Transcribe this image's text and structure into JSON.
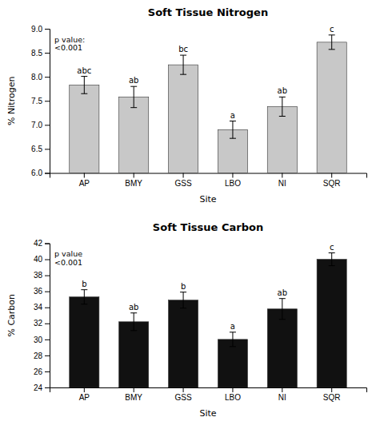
{
  "chart_data": [
    {
      "type": "bar",
      "title": "Soft Tissue Nitrogen",
      "xlabel": "Site",
      "ylabel": "% Nitrogen",
      "categories": [
        "AP",
        "BMY",
        "GSS",
        "LBO",
        "NI",
        "SQR"
      ],
      "values": [
        7.83,
        7.58,
        8.25,
        6.9,
        7.38,
        8.72
      ],
      "errors": [
        0.18,
        0.22,
        0.2,
        0.18,
        0.2,
        0.15
      ],
      "letters": [
        "abc",
        "ab",
        "bc",
        "a",
        "ab",
        "c"
      ],
      "annotation": "p value:\n<0.001",
      "color": "#C8C8C8",
      "ylim": [
        6.0,
        9.0
      ],
      "yticks": [
        {
          "value": 6.0,
          "label": "6.0"
        },
        6.5,
        {
          "value": 7.0,
          "label": "7.0"
        },
        7.5,
        {
          "value": 8.0,
          "label": "8.0"
        },
        8.5,
        {
          "value": 9.0,
          "label": "9.0"
        }
      ],
      "grid": false
    },
    {
      "type": "bar",
      "title": "Soft Tissue Carbon",
      "xlabel": "Site",
      "ylabel": "% Carbon",
      "categories": [
        "AP",
        "BMY",
        "GSS",
        "LBO",
        "NI",
        "SQR"
      ],
      "values": [
        35.3,
        32.2,
        34.9,
        30.0,
        33.8,
        40.0
      ],
      "errors": [
        0.9,
        1.1,
        1.0,
        0.9,
        1.3,
        0.8
      ],
      "letters": [
        "b",
        "ab",
        "b",
        "a",
        "ab",
        "c"
      ],
      "annotation": "p value\n<0.001",
      "color": "#111111",
      "ylim": [
        24,
        42
      ],
      "yticks": [
        24,
        26,
        28,
        30,
        32,
        34,
        36,
        38,
        40,
        42
      ],
      "grid": false
    }
  ]
}
